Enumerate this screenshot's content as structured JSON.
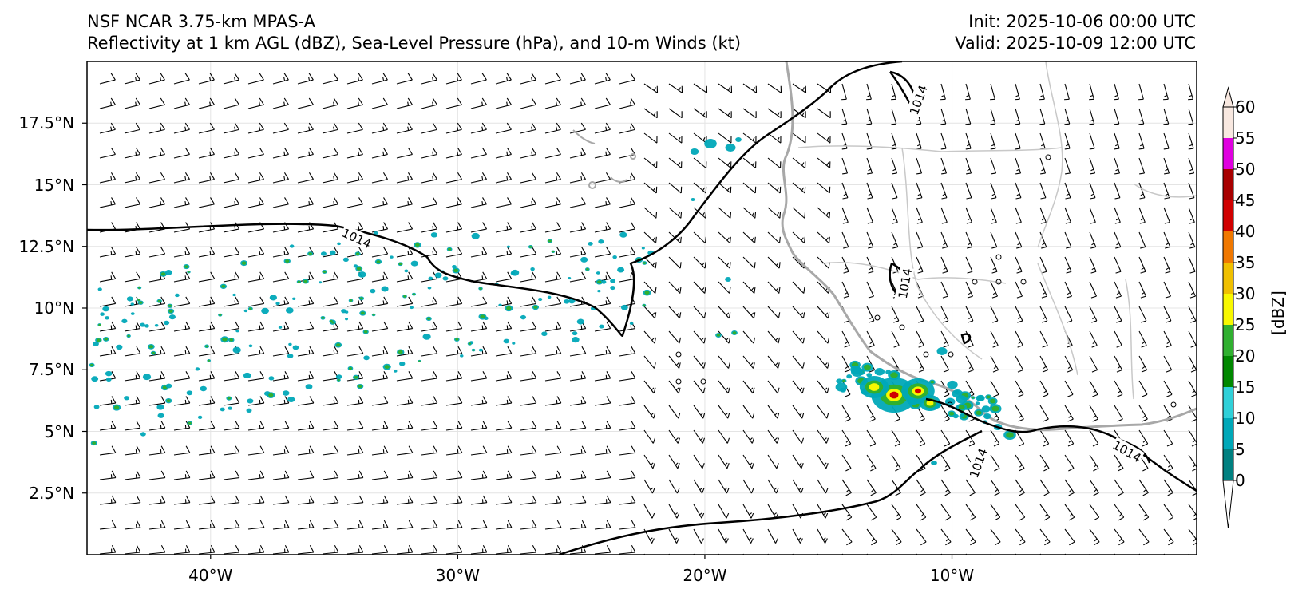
{
  "title": {
    "model": "NSF NCAR 3.75-km MPAS-A",
    "fields": "Reflectivity at 1 km AGL (dBZ), Sea-Level Pressure (hPa), and 10-m Winds (kt)",
    "init": "Init: 2025-10-06 00:00 UTC",
    "valid": "Valid: 2025-10-09 12:00 UTC"
  },
  "axes": {
    "lat_ticks": [
      "17.5°N",
      "15°N",
      "12.5°N",
      "10°N",
      "7.5°N",
      "5°N",
      "2.5°N"
    ],
    "lat_values": [
      17.5,
      15,
      12.5,
      10,
      7.5,
      5,
      2.5
    ],
    "lon_ticks": [
      "40°W",
      "30°W",
      "20°W",
      "10°W"
    ],
    "lon_values": [
      -40,
      -30,
      -20,
      -10
    ],
    "extent": {
      "lon_min": -45,
      "lon_max": -0.1,
      "lat_min": 0,
      "lat_max": 20
    }
  },
  "isobar": {
    "label": "1014",
    "value": 1014
  },
  "colorbar": {
    "label": "[dBZ]",
    "ticks": [
      "0",
      "5",
      "10",
      "15",
      "20",
      "25",
      "30",
      "35",
      "40",
      "45",
      "50",
      "55",
      "60"
    ],
    "colors": [
      "#008080",
      "#00a8b8",
      "#30d0d8",
      "#008800",
      "#30b030",
      "#f8f800",
      "#f0c000",
      "#f07800",
      "#d00000",
      "#a80000",
      "#e000e0",
      "#f8e8e0"
    ]
  },
  "map_colors": {
    "coastline": "#a8a8a8",
    "borders": "#c8c8c8",
    "isobar": "#000000",
    "barb": "#000000"
  }
}
